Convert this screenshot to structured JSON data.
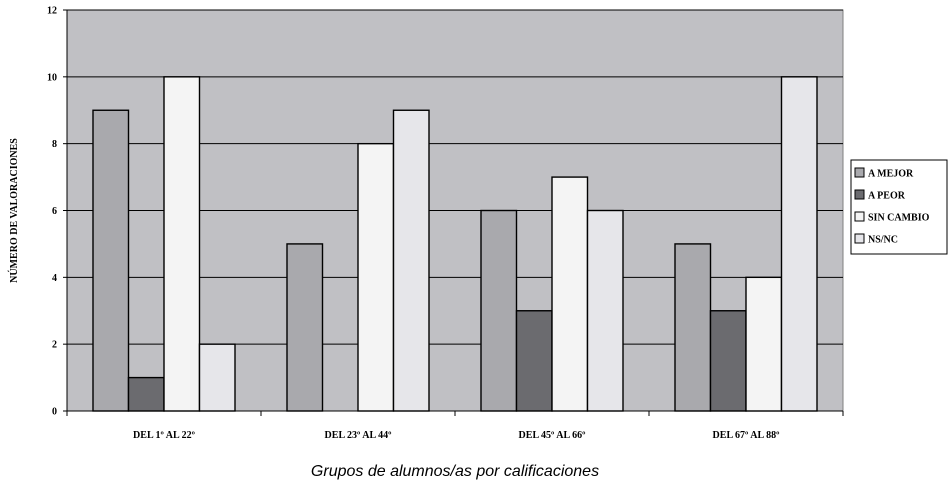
{
  "chart_data": {
    "type": "bar",
    "title": "",
    "xlabel": "Grupos de alumnos/as por calificaciones",
    "ylabel": "NÚMERO DE VALORACIONES",
    "ylim": [
      0,
      12
    ],
    "yticks": [
      0,
      2,
      4,
      6,
      8,
      10,
      12
    ],
    "grid": true,
    "legend_position": "right",
    "categories": [
      "DEL 1º AL 22º",
      "DEL 23º AL 44º",
      "DEL 45º AL 66º",
      "DEL 67º AL 88º"
    ],
    "series": [
      {
        "name": "A MEJOR",
        "color": "#a9a9ad",
        "values": [
          9,
          5,
          6,
          5
        ]
      },
      {
        "name": "A PEOR",
        "color": "#6b6b6f",
        "values": [
          1,
          0,
          3,
          3
        ]
      },
      {
        "name": "SIN CAMBIO",
        "color": "#f4f4f4",
        "values": [
          10,
          8,
          7,
          4
        ]
      },
      {
        "name": "NS/NC",
        "color": "#e6e6ea",
        "values": [
          2,
          9,
          6,
          10
        ]
      }
    ],
    "plot_background": "#c0c0c4"
  }
}
